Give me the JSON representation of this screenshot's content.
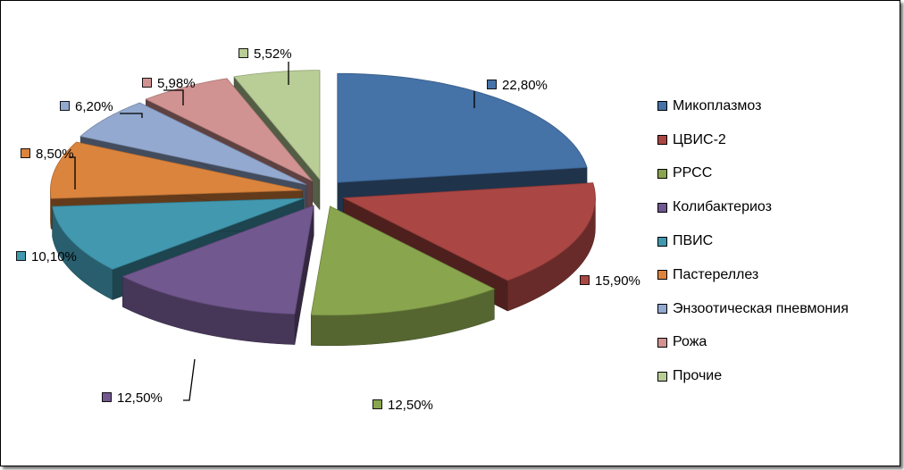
{
  "chart_data": {
    "type": "pie",
    "style": "3d-exploded",
    "categories": [
      "Микоплазмоз",
      "ЦВИС-2",
      "РРСС",
      "Колибактериоз",
      "ПВИС",
      "Пастереллез",
      "Энзоотическая пневмония",
      "Рожа",
      "Прочие"
    ],
    "values": [
      22.8,
      15.9,
      12.5,
      12.5,
      10.1,
      8.5,
      6.2,
      5.98,
      5.52
    ],
    "data_labels": [
      "22,80%",
      "15,90%",
      "12,50%",
      "12,50%",
      "10,10%",
      "8,50%",
      "6,20%",
      "5,98%",
      "5,52%"
    ],
    "colors": [
      "#4572A7",
      "#AA4643",
      "#89A54E",
      "#71588F",
      "#4198AF",
      "#DB843D",
      "#93A9CF",
      "#D19392",
      "#B9CD96"
    ],
    "legend_position": "right"
  }
}
